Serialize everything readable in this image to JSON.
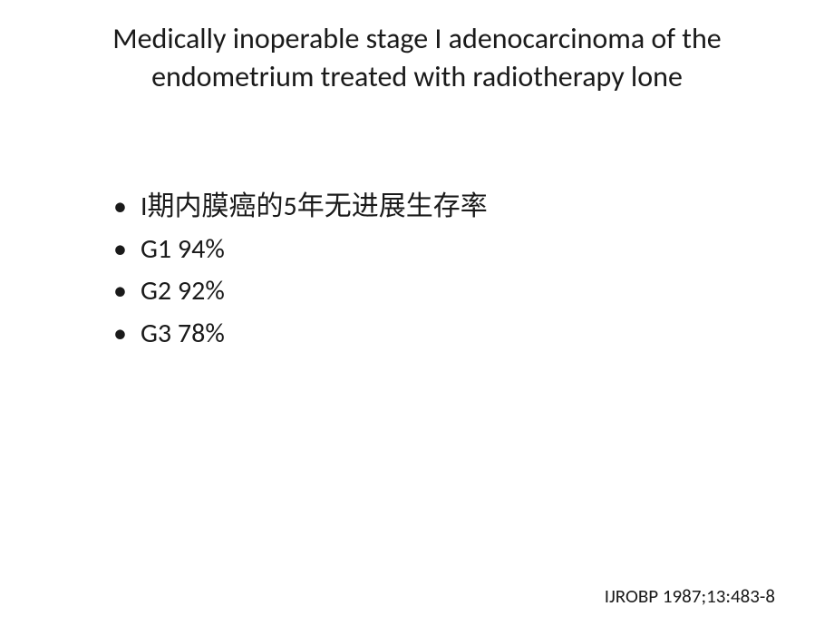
{
  "slide": {
    "title": {
      "line1": "Medically inoperable stage I adenocarcinoma of the",
      "line2": "endometrium treated with radiotherapy lone"
    },
    "bullets": [
      "I期内膜癌的5年无进展生存率",
      "G1 94%",
      "G2 92%",
      "G3 78%"
    ],
    "citation": "IJROBP 1987;13:483-8"
  },
  "styling": {
    "background_color": "#ffffff",
    "text_color": "#1a1a1a",
    "title_fontsize": 32,
    "bullet_fontsize": 30,
    "citation_fontsize": 21,
    "font_family": "Calibri, Arial, sans-serif"
  }
}
